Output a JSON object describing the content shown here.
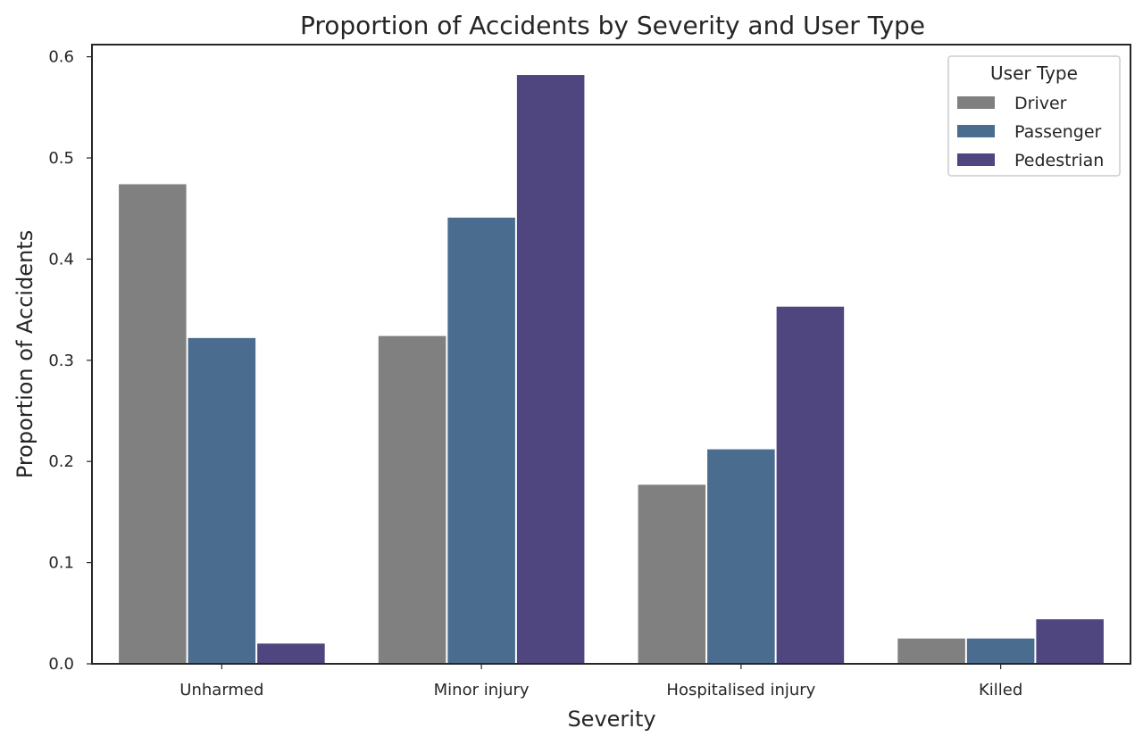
{
  "chart_data": {
    "type": "bar",
    "title": "Proportion of Accidents by Severity and User Type",
    "xlabel": "Severity",
    "ylabel": "Proportion of Accidents",
    "categories": [
      "Unharmed",
      "Minor injury",
      "Hospitalised injury",
      "Killed"
    ],
    "series": [
      {
        "name": "Driver",
        "color": "#808080",
        "values": [
          0.474,
          0.324,
          0.177,
          0.025
        ]
      },
      {
        "name": "Passenger",
        "color": "#4a6c8f",
        "values": [
          0.322,
          0.441,
          0.212,
          0.025
        ]
      },
      {
        "name": "Pedestrian",
        "color": "#4f4680",
        "values": [
          0.02,
          0.582,
          0.353,
          0.044
        ]
      }
    ],
    "ylim": [
      0,
      0.612
    ],
    "yticks": [
      0.0,
      0.1,
      0.2,
      0.3,
      0.4,
      0.5,
      0.6
    ],
    "ytick_labels": [
      "0.0",
      "0.1",
      "0.2",
      "0.3",
      "0.4",
      "0.5",
      "0.6"
    ],
    "grid": false,
    "legend": {
      "title": "User Type",
      "position": "top-right"
    }
  }
}
